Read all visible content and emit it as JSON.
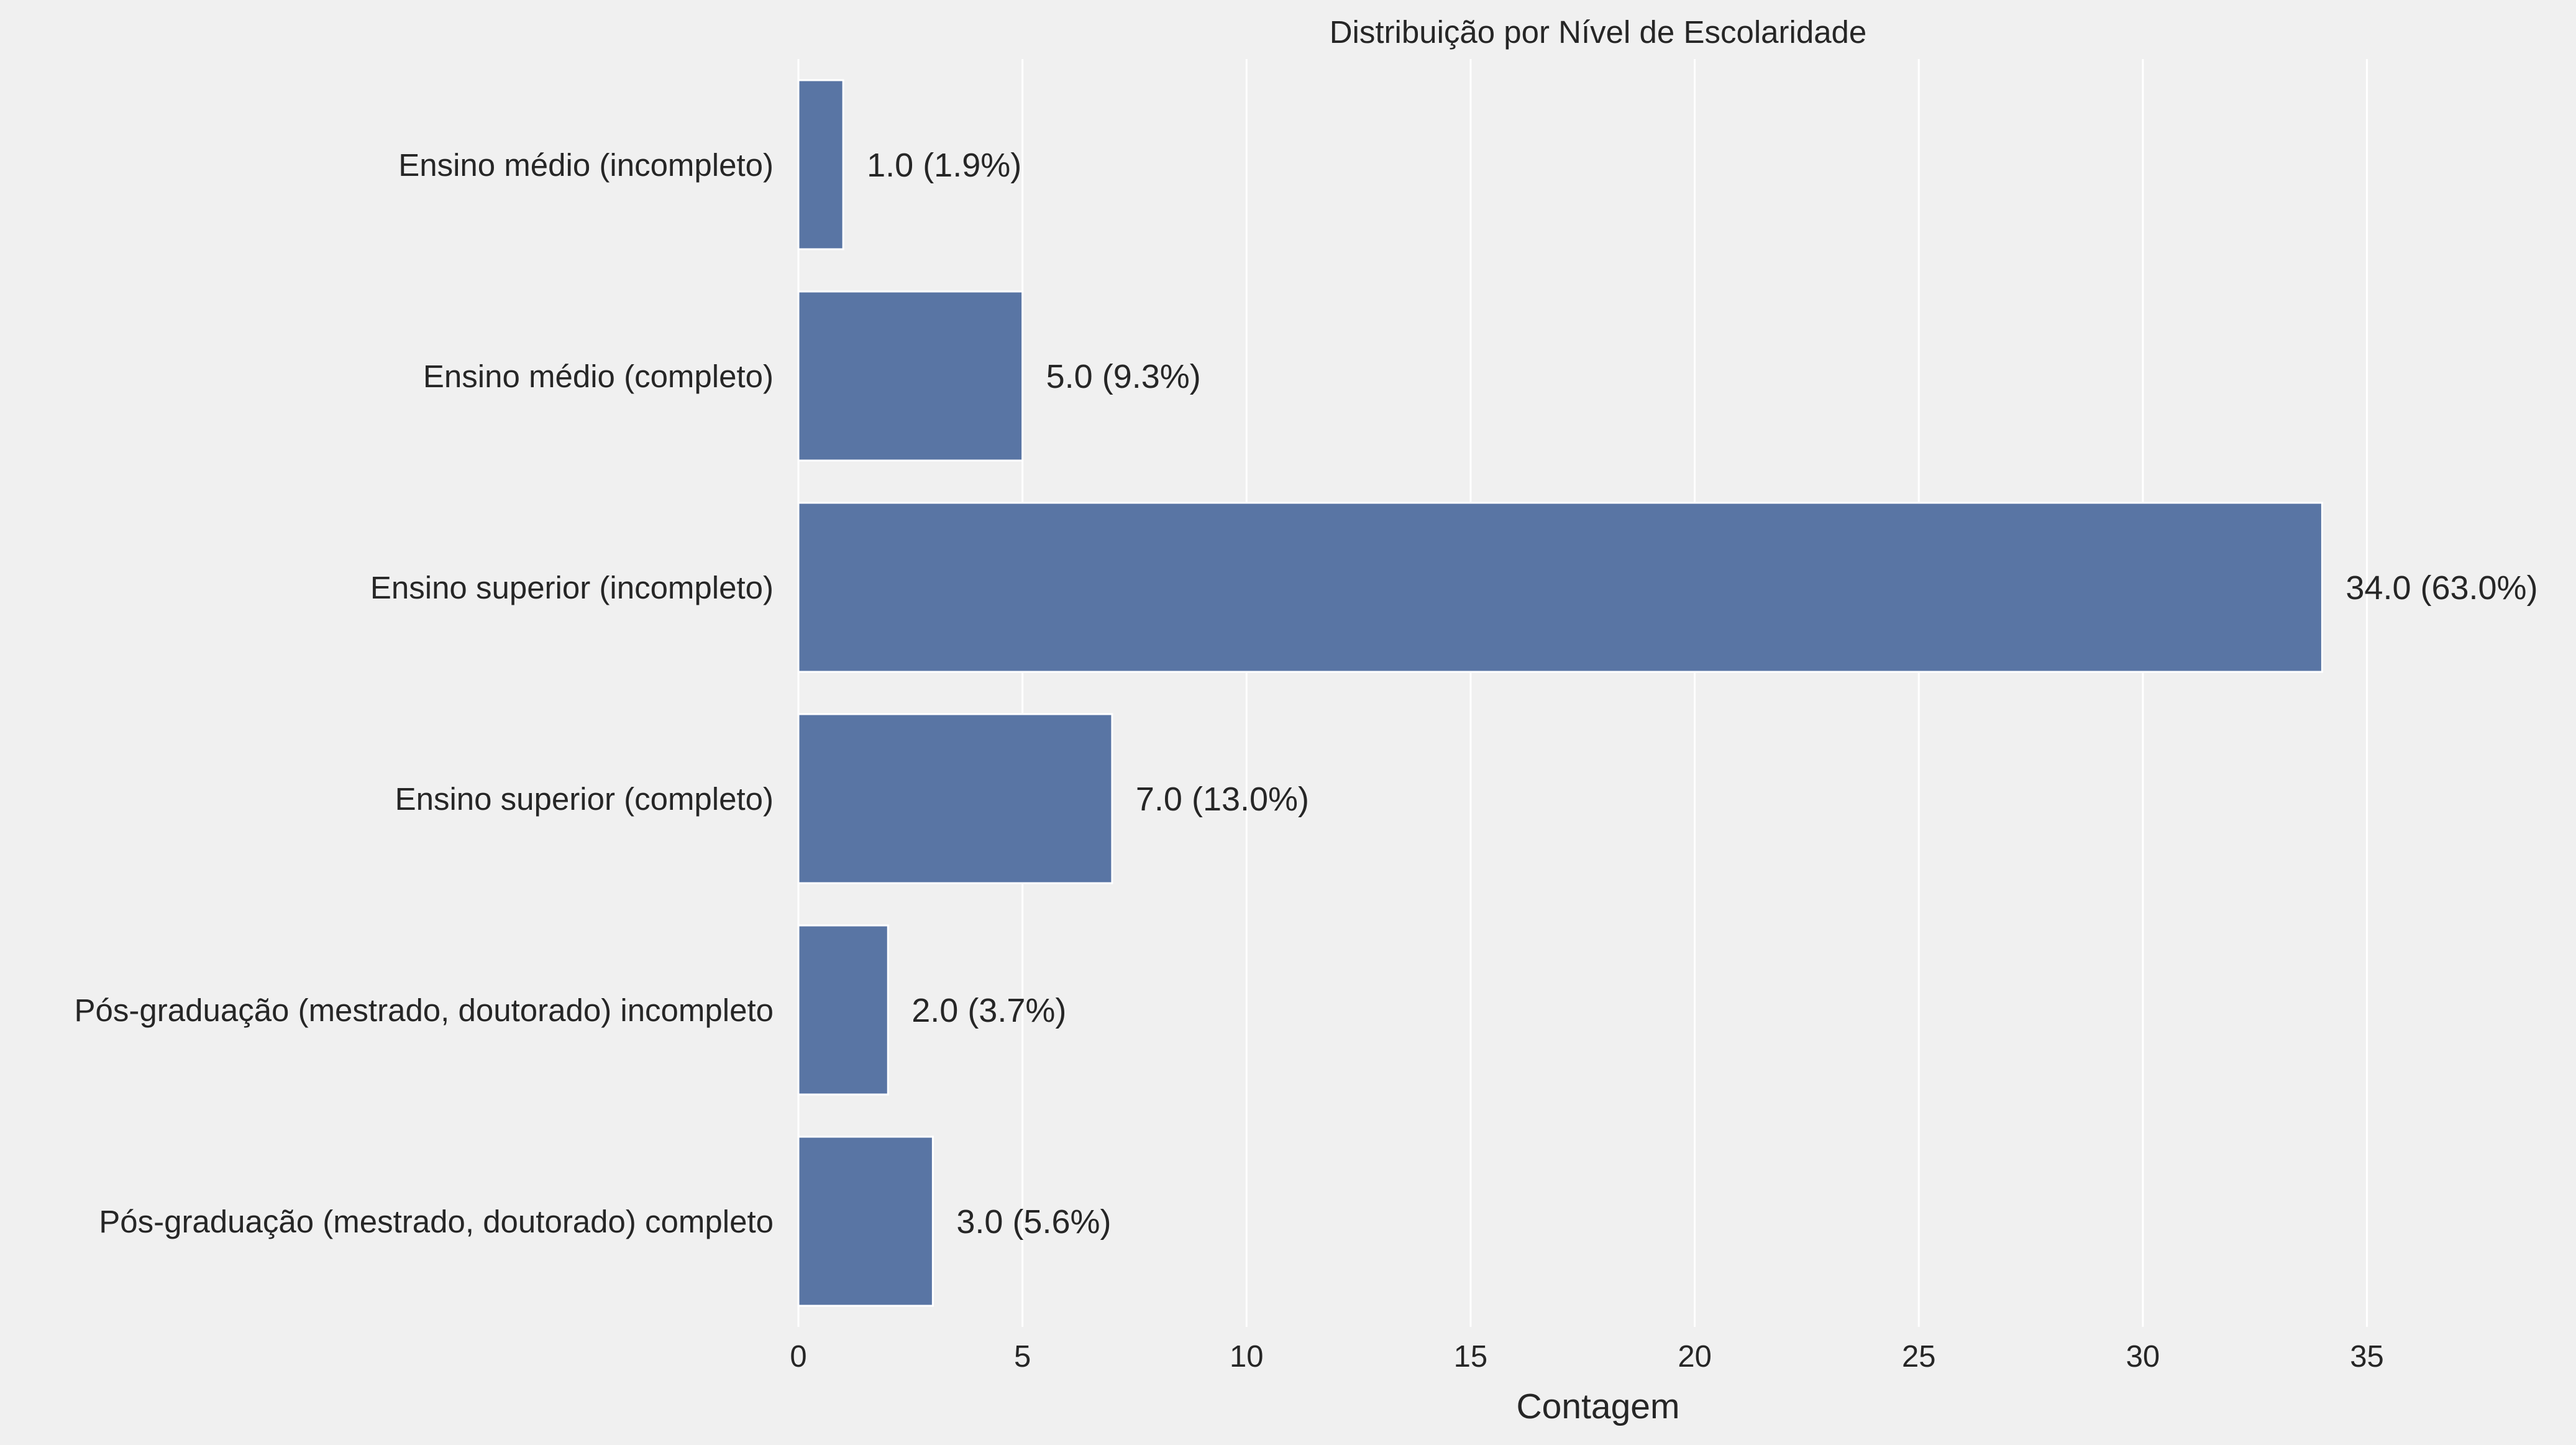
{
  "chart_data": {
    "type": "bar",
    "orientation": "horizontal",
    "title": "Distribuição por Nível de Escolaridade",
    "xlabel": "Contagem",
    "ylabel": "",
    "xlim": [
      0,
      35.7
    ],
    "xticks": [
      0,
      5,
      10,
      15,
      20,
      25,
      30,
      35
    ],
    "grid": true,
    "categories": [
      "Ensino médio (incompleto)",
      "Ensino médio (completo)",
      "Ensino superior (incompleto)",
      "Ensino superior (completo)",
      "Pós-graduação (mestrado, doutorado) incompleto",
      "Pós-graduação (mestrado, doutorado) completo"
    ],
    "values": [
      1.0,
      5.0,
      34.0,
      7.0,
      2.0,
      3.0
    ],
    "data_labels": [
      "1.0 (1.9%)",
      "5.0 (9.3%)",
      "34.0 (63.0%)",
      "7.0 (13.0%)",
      "2.0 (3.7%)",
      "3.0 (5.6%)"
    ],
    "colors": {
      "bar": "#5975a4",
      "background": "#f0f0f0",
      "grid": "#ffffff",
      "text": "#262626"
    }
  }
}
